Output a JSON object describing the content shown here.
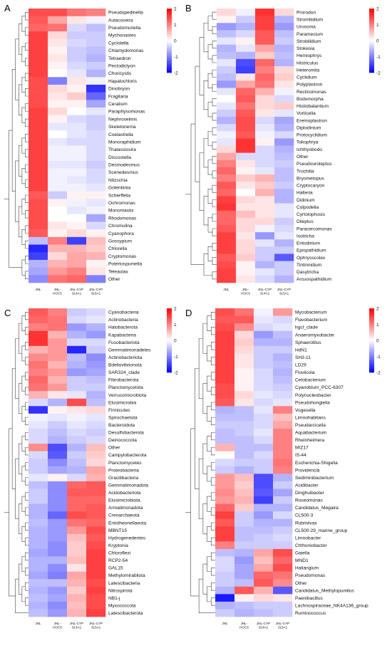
{
  "chart_data": [
    {
      "type": "heatmap",
      "panel_label": "A",
      "columns": [
        "JNL",
        "JNL-HOC5",
        "JNL-CYP 314A1",
        "JNL-CYP 315A1"
      ],
      "rows": [
        "Pseudopedinella",
        "Aulacoseira",
        "Pseudomuriella",
        "Mychonastes",
        "Cyclotella",
        "Chlamydomonas",
        "Tetraedron",
        "Pectodictyon",
        "Choricystis",
        "Hapalochloris",
        "Dinobryon",
        "Fragilaria",
        "Ceratium",
        "Paraphysomonas",
        "Nephroselmis",
        "Skeletonema",
        "Coelastrella",
        "Monoraphidium",
        "Thalassiosira",
        "Discostella",
        "Desmodesmus",
        "Scenedesmus",
        "Nitzschia",
        "Golenkinia",
        "Scherffelia",
        "Ochromonas",
        "Monomastix",
        "Rhodomonas",
        "Chromulina",
        "Cyanophora",
        "Gossypium",
        "Chlorella",
        "Cryptomonas",
        "Poteriospumella",
        "Teleaulax",
        "Other"
      ],
      "values": [
        [
          1.4,
          1.4,
          1.1,
          1.0
        ],
        [
          1.3,
          0.7,
          0.2,
          -0.1
        ],
        [
          1.2,
          1.1,
          -0.3,
          -0.5
        ],
        [
          1.5,
          0.3,
          -0.4,
          -0.4
        ],
        [
          1.5,
          0.2,
          -0.3,
          -0.4
        ],
        [
          1.5,
          0.1,
          -0.4,
          -0.5
        ],
        [
          1.5,
          0.2,
          -0.4,
          -0.6
        ],
        [
          1.5,
          0.1,
          -0.3,
          -0.4
        ],
        [
          1.5,
          0.0,
          -0.2,
          -0.6
        ],
        [
          1.4,
          -1.0,
          0.2,
          -0.1
        ],
        [
          1.4,
          0.3,
          0.1,
          -1.6
        ],
        [
          1.4,
          0.2,
          0.4,
          -1.2
        ],
        [
          1.4,
          0.1,
          0.1,
          -0.7
        ],
        [
          1.5,
          0.3,
          0.0,
          -0.2
        ],
        [
          1.5,
          0.1,
          -0.3,
          -0.4
        ],
        [
          1.5,
          -0.2,
          -0.2,
          -0.4
        ],
        [
          1.5,
          0.0,
          -0.2,
          -0.3
        ],
        [
          1.5,
          -0.2,
          -0.3,
          -0.3
        ],
        [
          1.5,
          -0.1,
          -0.1,
          -0.3
        ],
        [
          1.5,
          -0.1,
          -0.1,
          -0.3
        ],
        [
          1.5,
          -0.2,
          -0.2,
          -0.4
        ],
        [
          1.5,
          -0.1,
          -0.1,
          -0.3
        ],
        [
          1.5,
          -0.1,
          -0.2,
          -0.3
        ],
        [
          1.5,
          -0.1,
          -0.1,
          -0.2
        ],
        [
          1.3,
          -0.4,
          0.1,
          0.1
        ],
        [
          1.4,
          0.1,
          -0.1,
          -0.2
        ],
        [
          1.4,
          0.0,
          -0.2,
          -0.1
        ],
        [
          1.4,
          0.0,
          0.0,
          -0.7
        ],
        [
          1.4,
          0.2,
          0.1,
          -0.3
        ],
        [
          1.3,
          0.1,
          0.3,
          0.1
        ],
        [
          -0.5,
          1.0,
          -1.5,
          0.5
        ],
        [
          -1.7,
          0.6,
          0.6,
          0.4
        ],
        [
          -1.5,
          0.3,
          0.7,
          0.6
        ],
        [
          -0.6,
          0.6,
          0.7,
          0.1
        ],
        [
          -0.7,
          0.8,
          1.0,
          0.2
        ],
        [
          -0.9,
          1.1,
          1.2,
          -1.0
        ]
      ]
    },
    {
      "type": "heatmap",
      "panel_label": "B",
      "columns": [
        "JNL",
        "JNL-HOC5",
        "JNL-CYP 314A1",
        "JNL-CYP 315A1"
      ],
      "rows": [
        "Prorodon",
        "Strombidium",
        "Urosoma",
        "Paramecium",
        "Strobilidium",
        "Stokesia",
        "Hemiophrys",
        "Histriculus",
        "Heteromita",
        "Cyclidium",
        "Polyplastron",
        "Reclinomonas",
        "Bodomorpha",
        "Histiobalantium",
        "Vorticella",
        "Eremoplastron",
        "Diplodinium",
        "Protocyclidium",
        "Tokophrya",
        "Ichthyobodo",
        "Other",
        "Pseudouroleptus",
        "Trochilia",
        "Bryometopus",
        "Cryptocaryon",
        "Halteria",
        "Didinium",
        "Colpodella",
        "Cyrtolophosis",
        "Dileptus",
        "Paracercomonas",
        "Isotricha",
        "Entodinium",
        "Epispathidium",
        "Ophryoscolex",
        "Tintinnidium",
        "Dasytricha",
        "Arcuospathidium"
      ],
      "values": [
        [
          0.3,
          -0.1,
          1.6,
          0.3
        ],
        [
          0.1,
          -0.4,
          1.5,
          -0.6
        ],
        [
          -0.8,
          -0.6,
          1.5,
          -0.8
        ],
        [
          -0.5,
          -0.3,
          1.3,
          -0.5
        ],
        [
          -0.2,
          0.1,
          1.3,
          -0.4
        ],
        [
          -0.6,
          -0.2,
          0.7,
          -0.6
        ],
        [
          -0.5,
          -0.6,
          0.4,
          -0.5
        ],
        [
          -0.2,
          -1.4,
          1.2,
          -0.6
        ],
        [
          -0.4,
          -1.5,
          1.0,
          0.3
        ],
        [
          -0.5,
          0.2,
          1.2,
          0.4
        ],
        [
          -0.8,
          0.7,
          1.1,
          0.2
        ],
        [
          -0.2,
          1.2,
          0.6,
          -0.1
        ],
        [
          0.0,
          1.3,
          0.3,
          -0.3
        ],
        [
          -0.2,
          1.1,
          0.3,
          0.4
        ],
        [
          -0.4,
          1.3,
          0.2,
          -0.2
        ],
        [
          -0.6,
          1.4,
          -0.3,
          -0.7
        ],
        [
          -0.3,
          1.4,
          -0.2,
          -0.6
        ],
        [
          -0.1,
          1.3,
          -0.1,
          -0.3
        ],
        [
          -0.2,
          1.6,
          0.1,
          -0.8
        ],
        [
          0.3,
          1.6,
          -0.3,
          -0.6
        ],
        [
          0.7,
          -0.3,
          -0.3,
          -0.5
        ],
        [
          1.0,
          0.2,
          -0.3,
          -0.4
        ],
        [
          1.2,
          0.1,
          -0.2,
          -0.5
        ],
        [
          1.0,
          0.4,
          0.6,
          -0.5
        ],
        [
          1.3,
          0.2,
          0.4,
          -0.4
        ],
        [
          1.2,
          0.0,
          0.6,
          -0.6
        ],
        [
          1.5,
          0.3,
          0.2,
          -0.6
        ],
        [
          1.6,
          0.2,
          0.2,
          -0.2
        ],
        [
          1.2,
          0.5,
          0.2,
          -0.2
        ],
        [
          1.2,
          0.3,
          0.3,
          -0.4
        ],
        [
          1.3,
          0.3,
          -0.1,
          -0.3
        ],
        [
          1.5,
          0.2,
          -0.8,
          -0.2
        ],
        [
          1.5,
          0.3,
          -0.2,
          -0.6
        ],
        [
          1.5,
          0.3,
          -0.4,
          -0.4
        ],
        [
          1.3,
          0.4,
          -0.4,
          -1.3
        ],
        [
          1.4,
          0.1,
          -0.6,
          -0.4
        ],
        [
          1.5,
          0.1,
          -0.2,
          -0.4
        ],
        [
          1.5,
          0.2,
          -0.3,
          -0.6
        ]
      ]
    },
    {
      "type": "heatmap",
      "panel_label": "C",
      "columns": [
        "JNL",
        "JNL-HOC5",
        "JNL-CYP 314A1",
        "JNL-CYP 315A1"
      ],
      "rows": [
        "Cyanobacteria",
        "Actinobacteria",
        "Halobacterota",
        "Kapabacteria",
        "Fusobacteriota",
        "Gemmatimonadetes",
        "Actinobacteriota",
        "Bdellovibrionota",
        "SAR324_clade",
        "Fibrobacterota",
        "Planctomycetota",
        "Verrucomicrobiota",
        "Elusimicrobia",
        "Firmicutes",
        "Spirochaetota",
        "Bacteroidota",
        "Desulfobacterota",
        "Deinococcota",
        "Other",
        "Campylobacterota",
        "Planctomycetes",
        "Proteobacteria",
        "Gracilibacteria",
        "Gemmatimonadota",
        "Acidobacteriota",
        "Elusimicrobiota",
        "Armatimonadota",
        "Crenarchaeota",
        "Entotheonellaeota",
        "MBNT15",
        "Hydrogenedentes",
        "Kryptonia",
        "Chloroflexi",
        "RCP2-54",
        "GAL15",
        "Methylomirabilota",
        "Latescibacteria",
        "Nitrospirota",
        "NB1-j",
        "Myxococcota",
        "Latescibacterota"
      ],
      "values": [
        [
          1.3,
          1.0,
          -0.4,
          -0.3
        ],
        [
          1.2,
          1.1,
          -0.3,
          -0.2
        ],
        [
          1.0,
          1.1,
          -0.8,
          -0.6
        ],
        [
          1.6,
          0.6,
          -0.6,
          -0.8
        ],
        [
          1.6,
          0.8,
          -0.3,
          -0.3
        ],
        [
          0.6,
          0.8,
          -1.7,
          -0.4
        ],
        [
          0.9,
          0.8,
          -0.5,
          -0.9
        ],
        [
          1.1,
          0.6,
          -0.6,
          -0.8
        ],
        [
          1.0,
          0.8,
          -0.8,
          -0.7
        ],
        [
          1.2,
          0.6,
          -0.4,
          -0.5
        ],
        [
          1.1,
          0.8,
          -0.4,
          -0.4
        ],
        [
          0.6,
          0.2,
          -0.2,
          -0.6
        ],
        [
          -0.3,
          -0.6,
          1.4,
          -0.5
        ],
        [
          -1.6,
          0.1,
          0.2,
          0.3
        ],
        [
          -0.1,
          -0.2,
          -0.1,
          -0.2
        ],
        [
          -0.2,
          -0.4,
          -0.2,
          -0.3
        ],
        [
          -0.3,
          -0.5,
          -0.3,
          -0.4
        ],
        [
          -0.3,
          -0.6,
          -0.4,
          -0.3
        ],
        [
          0.9,
          -1.4,
          -0.6,
          0.5
        ],
        [
          -0.3,
          -1.3,
          -0.4,
          0.4
        ],
        [
          -0.4,
          -0.9,
          -0.5,
          0.3
        ],
        [
          -0.4,
          -0.7,
          -0.6,
          0.7
        ],
        [
          -0.2,
          0.1,
          -0.3,
          0.6
        ],
        [
          -0.5,
          -0.9,
          1.2,
          1.3
        ],
        [
          -0.4,
          -0.9,
          1.3,
          1.3
        ],
        [
          -0.4,
          -0.9,
          1.2,
          1.2
        ],
        [
          -0.6,
          -0.9,
          1.2,
          1.3
        ],
        [
          -0.6,
          -1.2,
          1.4,
          1.3
        ],
        [
          -0.5,
          -0.8,
          1.1,
          1.2
        ],
        [
          -0.6,
          -0.8,
          0.8,
          1.4
        ],
        [
          -0.6,
          -0.8,
          0.5,
          1.3
        ],
        [
          -0.6,
          -0.9,
          0.4,
          1.4
        ],
        [
          -0.7,
          -0.9,
          0.4,
          1.5
        ],
        [
          -0.6,
          -0.6,
          0.5,
          1.5
        ],
        [
          -0.6,
          -0.9,
          0.2,
          1.5
        ],
        [
          -0.7,
          -1.0,
          0.7,
          1.5
        ],
        [
          -0.5,
          -0.5,
          0.6,
          1.4
        ],
        [
          -0.6,
          -0.8,
          0.4,
          1.5
        ],
        [
          -0.5,
          -0.7,
          0.6,
          1.4
        ],
        [
          -0.6,
          -0.9,
          0.5,
          1.4
        ],
        [
          -0.5,
          -0.8,
          0.6,
          1.5
        ]
      ]
    },
    {
      "type": "heatmap",
      "panel_label": "D",
      "columns": [
        "JNL",
        "JNL-HOC5",
        "JNL-CYP 314A1",
        "JNL-CYP 315A1"
      ],
      "rows": [
        "Mycobacterium",
        "Flavobacterium",
        "hgcI_clade",
        "Anaeromyxobacter",
        "Sphaerotilus",
        "HdN1",
        "SH3-11",
        "LD29",
        "Fluviicola",
        "Cetobacterium",
        "Cyanobium_PCC-6307",
        "Polynucleobacter",
        "Pseudohongiella",
        "Vogesella",
        "Limnohabitans",
        "Pseudarcicella",
        "Aquabacterium",
        "Rheinheimera",
        "MIZ17",
        "IS-44",
        "Escherichia-Shigella",
        "Providencia",
        "Sediminibacterium",
        "Acidibacter",
        "Dinghuibacter",
        "Roseomonas",
        "Candidatus_Megaira",
        "CL500-3",
        "Rubrivivax",
        "CL500-29_marine_group",
        "Limnobacter",
        "Chthoniobacter",
        "Gaiella",
        "MND1",
        "Haliangium",
        "Pseudomonas",
        "Other",
        "Candidatus_Methylopumilus",
        "Paenibacillus",
        "Lachnospiraceae_NK4A136_group",
        "Ruminococcus"
      ],
      "values": [
        [
          1.4,
          1.1,
          -0.1,
          0.8
        ],
        [
          1.3,
          1.3,
          -0.2,
          -0.3
        ],
        [
          1.4,
          0.9,
          -0.3,
          -0.2
        ],
        [
          1.5,
          0.3,
          -0.8,
          -0.5
        ],
        [
          1.5,
          0.4,
          -0.6,
          -0.6
        ],
        [
          1.5,
          0.3,
          -0.4,
          -0.4
        ],
        [
          1.5,
          0.2,
          -0.4,
          -0.6
        ],
        [
          1.5,
          0.2,
          -0.4,
          -0.5
        ],
        [
          1.5,
          0.1,
          -0.3,
          -0.6
        ],
        [
          1.5,
          0.1,
          -0.3,
          -0.5
        ],
        [
          1.4,
          0.1,
          -0.3,
          -0.4
        ],
        [
          1.4,
          0.3,
          -0.2,
          -0.3
        ],
        [
          1.3,
          0.2,
          -0.3,
          -0.2
        ],
        [
          -0.6,
          -0.5,
          -0.2,
          1.0
        ],
        [
          -0.5,
          -0.5,
          -0.3,
          0.5
        ],
        [
          -0.4,
          -0.4,
          -0.3,
          0.7
        ],
        [
          -0.5,
          -0.4,
          -0.2,
          1.0
        ],
        [
          -0.5,
          -0.5,
          -0.3,
          1.0
        ],
        [
          0.6,
          -0.5,
          -0.5,
          1.0
        ],
        [
          0.0,
          -0.5,
          -0.3,
          1.0
        ],
        [
          -0.3,
          -0.4,
          -0.4,
          1.1
        ],
        [
          -0.4,
          -0.6,
          -0.4,
          1.0
        ],
        [
          0.8,
          0.5,
          -1.4,
          -0.6
        ],
        [
          0.8,
          0.4,
          -1.4,
          -0.4
        ],
        [
          0.9,
          0.5,
          -1.3,
          -0.7
        ],
        [
          0.8,
          0.6,
          -1.5,
          -0.4
        ],
        [
          1.2,
          0.4,
          -0.6,
          -0.6
        ],
        [
          1.5,
          -0.4,
          -0.8,
          -0.3
        ],
        [
          1.3,
          -0.4,
          -0.6,
          -0.6
        ],
        [
          1.5,
          -0.5,
          -0.5,
          -0.4
        ],
        [
          1.5,
          -0.5,
          -0.4,
          -0.3
        ],
        [
          1.0,
          -0.4,
          -0.4,
          -0.4
        ],
        [
          -0.5,
          -0.6,
          0.7,
          1.4
        ],
        [
          -0.3,
          -0.8,
          0.5,
          1.2
        ],
        [
          -0.3,
          -0.7,
          0.7,
          1.4
        ],
        [
          -0.4,
          -0.7,
          1.2,
          1.1
        ],
        [
          -0.4,
          -0.5,
          1.3,
          0.9
        ],
        [
          -0.6,
          1.3,
          0.6,
          -1.3
        ],
        [
          -1.8,
          0.1,
          0.3,
          0.2
        ],
        [
          -0.6,
          -0.5,
          -0.4,
          -0.4
        ],
        [
          -0.4,
          -0.6,
          -0.5,
          -0.4
        ]
      ]
    }
  ],
  "color_scale": {
    "ticks": [
      2,
      1,
      0,
      -1,
      -2
    ],
    "low_color": "#0000ff",
    "mid_color": "#ffffff",
    "high_color": "#ff0000",
    "vmin": -2,
    "vmax": 2
  }
}
